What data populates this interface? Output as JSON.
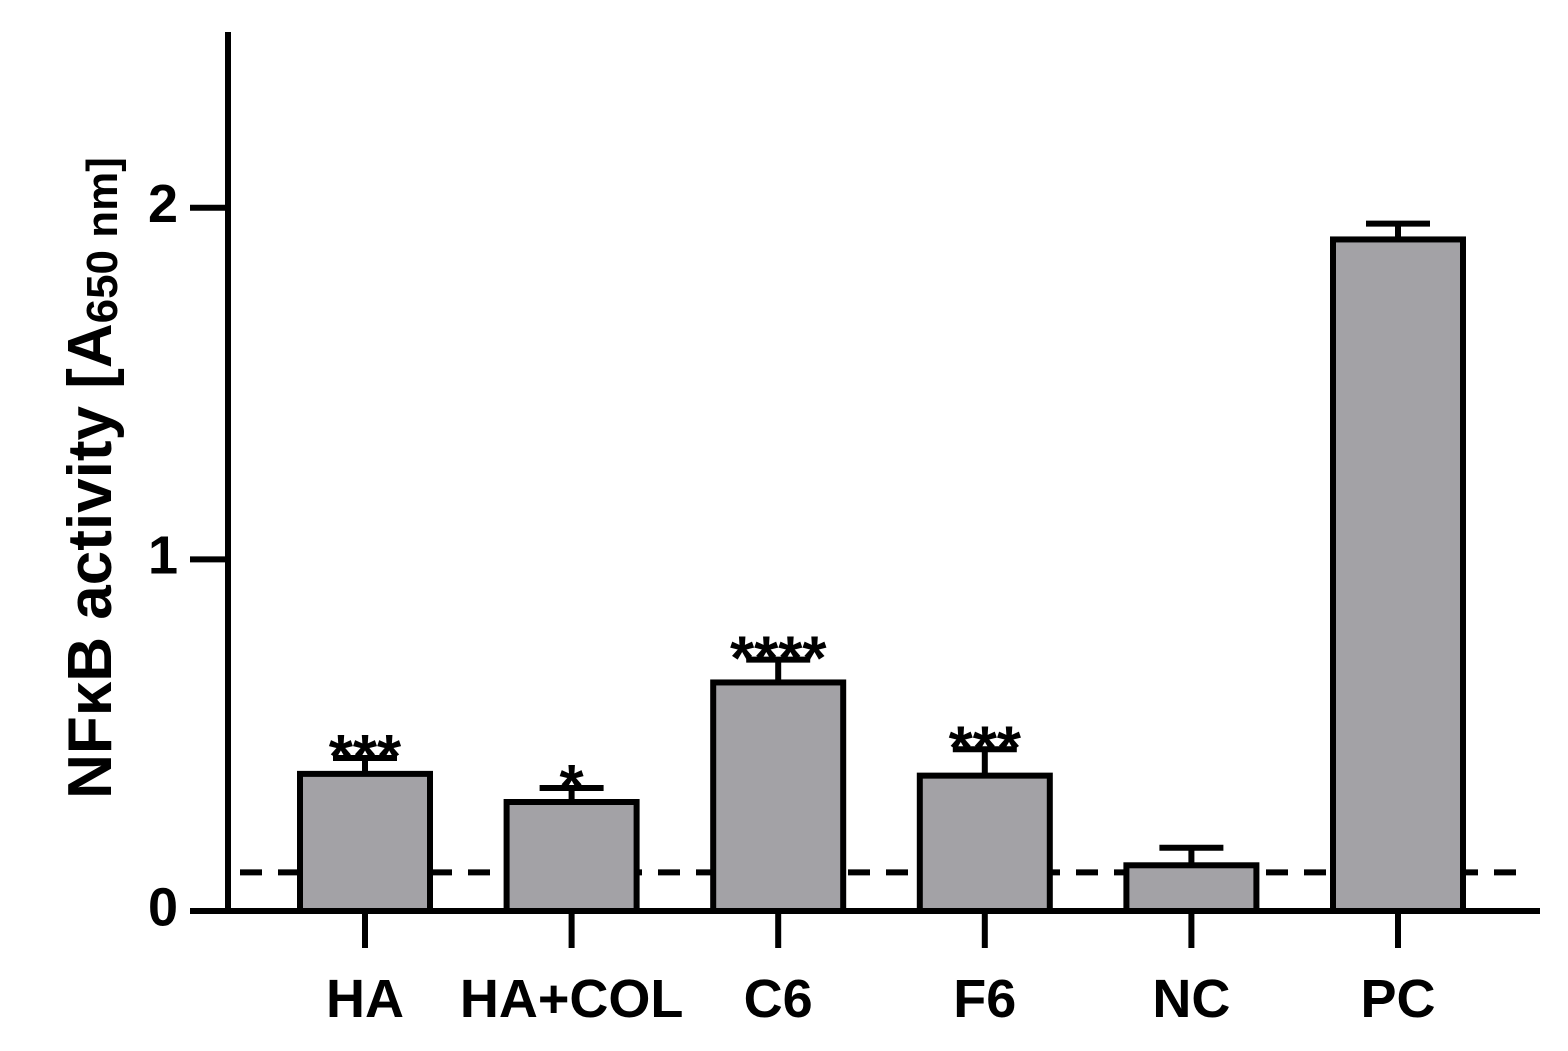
{
  "chart_data": {
    "type": "bar",
    "y_label": {
      "main": "NFκB activity [A",
      "sub": "650",
      "unit": " nm]"
    },
    "categories": [
      "HA",
      "HA+COL",
      "C6",
      "F6",
      "NC",
      "PC"
    ],
    "values": [
      0.39,
      0.31,
      0.65,
      0.385,
      0.13,
      1.91
    ],
    "errors": [
      0.045,
      0.04,
      0.065,
      0.075,
      0.05,
      0.045
    ],
    "annotations": [
      "***",
      "*",
      "****",
      "***",
      null,
      null
    ],
    "reference_line": 0.11,
    "color": "#a3a2a6",
    "ylim": [
      0,
      2.5
    ],
    "yticks": [
      0,
      1,
      2
    ]
  }
}
